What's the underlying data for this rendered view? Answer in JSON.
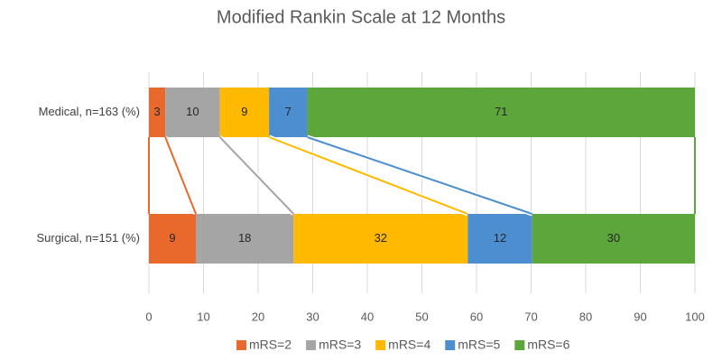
{
  "chart_data": {
    "type": "stacked-bar-horizontal",
    "title": "Modified Rankin Scale at 12 Months",
    "categories": [
      "Medical, n=163 (%)",
      "Surgical, n=151 (%)"
    ],
    "series": [
      {
        "name": "mRS=2",
        "color": "#E8692B",
        "values": [
          3,
          8.6
        ],
        "value_labels": [
          "3",
          "9"
        ]
      },
      {
        "name": "mRS=3",
        "color": "#A5A5A5",
        "values": [
          10,
          17.9
        ],
        "value_labels": [
          "10",
          "18"
        ]
      },
      {
        "name": "mRS=4",
        "color": "#FFB900",
        "values": [
          9,
          31.9
        ],
        "value_labels": [
          "9",
          "32"
        ]
      },
      {
        "name": "mRS=5",
        "color": "#4D8ED0",
        "values": [
          7,
          11.8
        ],
        "value_labels": [
          "7",
          "12"
        ]
      },
      {
        "name": "mRS=6",
        "color": "#5DA63C",
        "values": [
          71,
          29.8
        ],
        "value_labels": [
          "71",
          "30"
        ]
      }
    ],
    "xlim": [
      0,
      100
    ],
    "xticks": [
      0,
      10,
      20,
      30,
      40,
      50,
      60,
      70,
      80,
      90,
      100
    ],
    "grid": true,
    "series_lines": true
  }
}
